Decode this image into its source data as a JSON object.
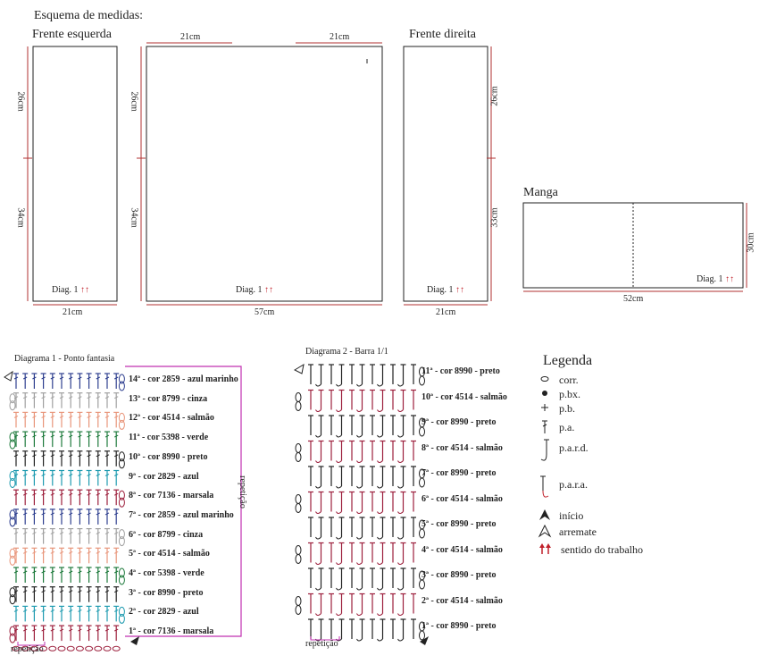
{
  "header": {
    "title": "Esquema de medidas:"
  },
  "pieces": {
    "front_left": {
      "title": "Frente esquerda",
      "h_top": "26cm",
      "h_bottom": "34cm",
      "width": "21cm",
      "diag": "Diag. 1"
    },
    "back": {
      "top_left": "21cm",
      "top_right": "21cm",
      "h_top": "26cm",
      "h_bottom": "34cm",
      "width": "57cm",
      "diag": "Diag. 1"
    },
    "front_right": {
      "title": "Frente direita",
      "h_top": "26cm",
      "h_bottom": "33cm",
      "width": "21cm",
      "diag": "Diag. 1"
    },
    "sleeve": {
      "title": "Manga",
      "height": "30cm",
      "width": "52cm",
      "diag": "Diag. 1"
    }
  },
  "arrows_glyph": "↑↑",
  "diagram1": {
    "title": "Diagrama 1 - Ponto fantasia",
    "repeat_side": "repetição",
    "repeat_bottom": "repetição",
    "rows": [
      {
        "label": "14ª - cor 2859 - azul marinho",
        "color": "#2e3f8f"
      },
      {
        "label": "13ª - cor 8799 - cinza",
        "color": "#a0a0a0"
      },
      {
        "label": "12ª - cor 4514 - salmão",
        "color": "#e8957a"
      },
      {
        "label": "11ª - cor 5398 - verde",
        "color": "#1e7a3c"
      },
      {
        "label": "10ª - cor 8990 - preto",
        "color": "#222222"
      },
      {
        "label": "9ª - cor 2829 - azul",
        "color": "#1f9bb0"
      },
      {
        "label": "8ª - cor 7136 - marsala",
        "color": "#9c1f3c"
      },
      {
        "label": "7ª - cor 2859 - azul marinho",
        "color": "#2e3f8f"
      },
      {
        "label": "6ª - cor 8799 - cinza",
        "color": "#a0a0a0"
      },
      {
        "label": "5ª - cor 4514 - salmão",
        "color": "#e8957a"
      },
      {
        "label": "4ª - cor 5398 - verde",
        "color": "#1e7a3c"
      },
      {
        "label": "3ª - cor 8990 - preto",
        "color": "#222222"
      },
      {
        "label": "2ª - cor 2829 - azul",
        "color": "#1f9bb0"
      },
      {
        "label": "1ª - cor 7136 - marsala",
        "color": "#9c1f3c"
      }
    ]
  },
  "diagram2": {
    "title": "Diagrama 2 - Barra 1/1",
    "repeat_bottom": "repetição",
    "rows": [
      {
        "label": "11ª - cor 8990 - preto",
        "color": "#222222"
      },
      {
        "label": "10ª - cor 4514 - salmão",
        "color": "#9c1f3c"
      },
      {
        "label": "9ª - cor 8990 - preto",
        "color": "#222222"
      },
      {
        "label": "8ª - cor 4514 - salmão",
        "color": "#9c1f3c"
      },
      {
        "label": "7ª - cor 8990 - preto",
        "color": "#222222"
      },
      {
        "label": "6ª - cor 4514 - salmão",
        "color": "#9c1f3c"
      },
      {
        "label": "5ª - cor 8990 - preto",
        "color": "#222222"
      },
      {
        "label": "4ª - cor 4514 - salmão",
        "color": "#9c1f3c"
      },
      {
        "label": "3ª - cor 8990 - preto",
        "color": "#222222"
      },
      {
        "label": "2ª - cor 4514 - salmão",
        "color": "#9c1f3c"
      },
      {
        "label": "1ª - cor 8990 - preto",
        "color": "#222222"
      }
    ]
  },
  "legend": {
    "title": "Legenda",
    "items": [
      {
        "symbol": "oval-icon",
        "label": "corr."
      },
      {
        "symbol": "filled-dot-icon",
        "label": "p.bx."
      },
      {
        "symbol": "plus-icon",
        "label": "p.b."
      },
      {
        "symbol": "pa-icon",
        "label": "p.a."
      },
      {
        "symbol": "pard-icon",
        "label": "p.a.r.d."
      },
      {
        "symbol": "para-icon",
        "label": "p.a.r.a."
      },
      {
        "symbol": "start-arrow-icon",
        "label": "início"
      },
      {
        "symbol": "finish-arrow-icon",
        "label": "arremate"
      },
      {
        "symbol": "direction-arrows-icon",
        "label": "sentido do trabalho"
      }
    ]
  }
}
